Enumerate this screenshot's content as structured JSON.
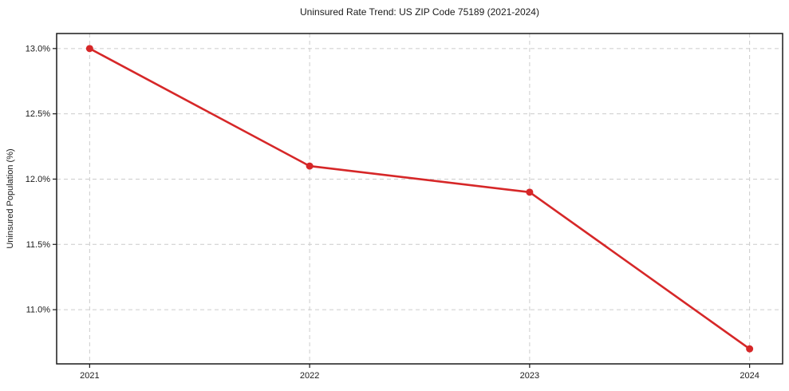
{
  "page": {
    "background": "#ffffff"
  },
  "chart_data": {
    "type": "line",
    "title": "Uninsured Rate Trend: US ZIP Code 75189 (2021-2024)",
    "xlabel": "",
    "ylabel": "Uninsured Population (%)",
    "x": [
      "2021",
      "2022",
      "2023",
      "2024"
    ],
    "values": [
      13.0,
      12.1,
      11.9,
      10.7
    ],
    "ytick_values": [
      11.0,
      11.5,
      12.0,
      12.5,
      13.0
    ],
    "ytick_labels": [
      "11.0%",
      "11.5%",
      "12.0%",
      "12.5%",
      "13.0%"
    ],
    "ylim": [
      10.585,
      13.115
    ],
    "x_margin_frac": 0.05,
    "grid": {
      "show": true,
      "color": "#cccccc",
      "dash": "5 4"
    },
    "line_color": "#d62728",
    "marker": "circle",
    "spine_color": "#1a1a1a",
    "tick_color": "#1a1a1a",
    "text_color": "#1a1a1a",
    "legend": {
      "show": false
    }
  }
}
